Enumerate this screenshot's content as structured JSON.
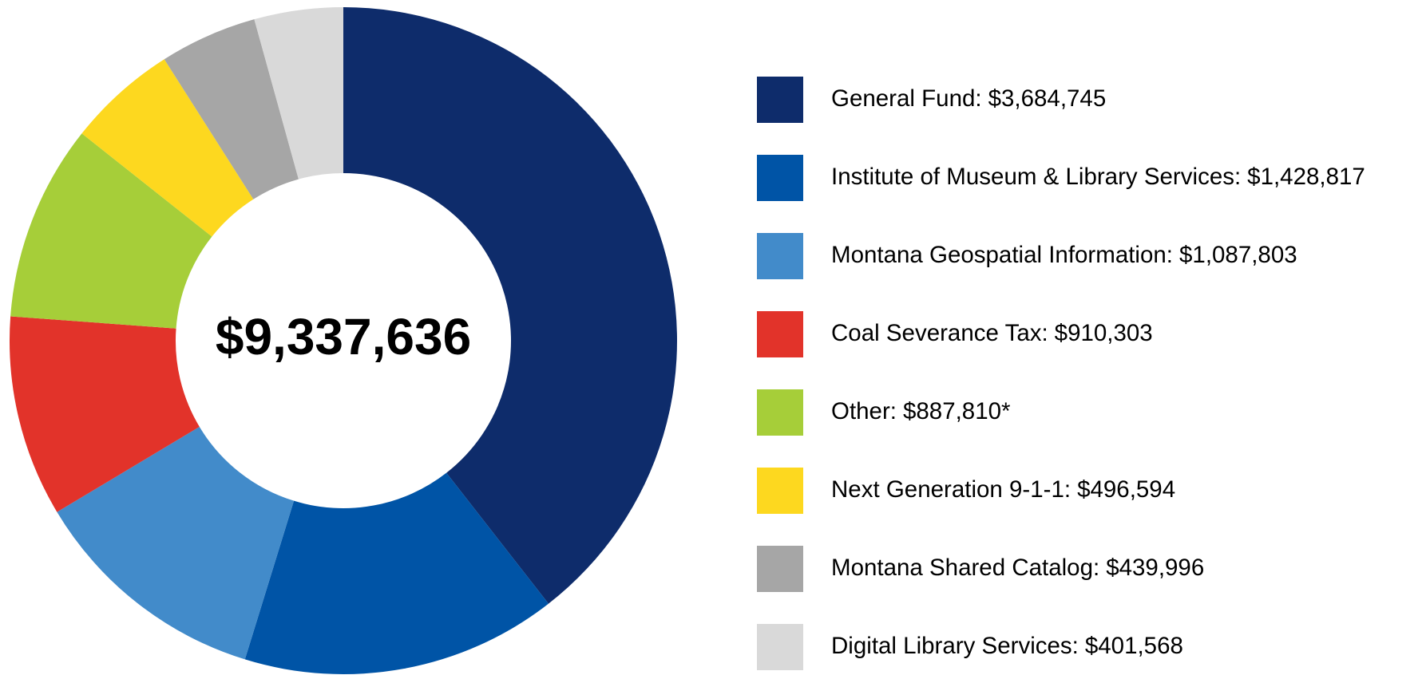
{
  "chart_data": {
    "type": "donut",
    "annotation": "$9,337,636",
    "categories": [
      "General Fund:",
      "Institute of Museum & Library Services:",
      "Montana Geospatial Information:",
      "Coal Severance Tax:",
      "Other:",
      "Next Generation 9-1-1:",
      "Montana Shared Catalog:",
      "Digital Library Services:"
    ],
    "values": [
      3684745,
      1428817,
      1087803,
      910303,
      887810,
      496594,
      439996,
      401568
    ],
    "value_labels": [
      "$3,684,745",
      "$1,428,817",
      "$1,087,803",
      "$910,303",
      "$887,810*",
      "$496,594",
      "$439,996",
      "$401,568"
    ],
    "colors": [
      "#0e2c6b",
      "#0054a6",
      "#428bca",
      "#e2332a",
      "#a6ce39",
      "#fdd81f",
      "#a6a6a6",
      "#d9d9d9"
    ],
    "legend": "right"
  }
}
